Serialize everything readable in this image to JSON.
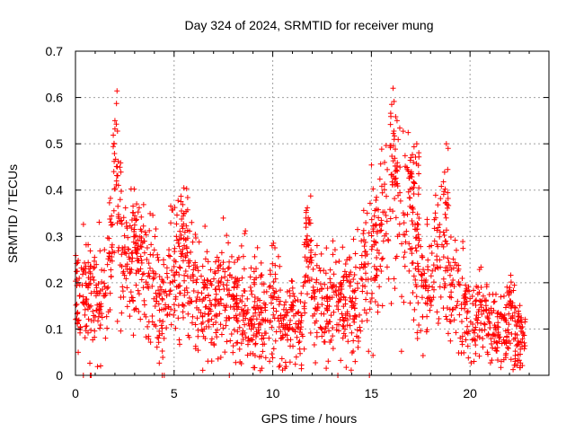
{
  "chart_data": {
    "type": "scatter",
    "title": "Day 324 of 2024, SRMTID for receiver mung",
    "xlabel": "GPS time / hours",
    "ylabel": "SRMTID / TECUs",
    "xlim": [
      0,
      24
    ],
    "ylim": [
      0,
      0.7
    ],
    "xticks": [
      0,
      5,
      10,
      15,
      20
    ],
    "yticks": [
      0,
      0.1,
      0.2,
      0.3,
      0.4,
      0.5,
      0.6,
      0.7
    ],
    "xtick_labels": [
      "0",
      "5",
      "10",
      "15",
      "20"
    ],
    "ytick_labels": [
      "0",
      "0.1",
      "0.2",
      "0.3",
      "0.4",
      "0.5",
      "0.6",
      "0.7"
    ],
    "grid": true,
    "marker": "+",
    "color": "#ff0000",
    "envelope": [
      {
        "x": 0.0,
        "y": 0.17
      },
      {
        "x": 0.5,
        "y": 0.16
      },
      {
        "x": 0.9,
        "y": 0.18
      },
      {
        "x": 1.3,
        "y": 0.17
      },
      {
        "x": 1.7,
        "y": 0.21
      },
      {
        "x": 2.0,
        "y": 0.4
      },
      {
        "x": 2.2,
        "y": 0.34
      },
      {
        "x": 2.5,
        "y": 0.22
      },
      {
        "x": 3.0,
        "y": 0.26
      },
      {
        "x": 3.5,
        "y": 0.23
      },
      {
        "x": 4.0,
        "y": 0.17
      },
      {
        "x": 4.5,
        "y": 0.15
      },
      {
        "x": 4.8,
        "y": 0.2
      },
      {
        "x": 5.2,
        "y": 0.26
      },
      {
        "x": 5.6,
        "y": 0.25
      },
      {
        "x": 6.0,
        "y": 0.18
      },
      {
        "x": 6.5,
        "y": 0.16
      },
      {
        "x": 7.0,
        "y": 0.15
      },
      {
        "x": 7.5,
        "y": 0.18
      },
      {
        "x": 8.0,
        "y": 0.14
      },
      {
        "x": 8.5,
        "y": 0.17
      },
      {
        "x": 9.0,
        "y": 0.14
      },
      {
        "x": 9.5,
        "y": 0.13
      },
      {
        "x": 10.0,
        "y": 0.16
      },
      {
        "x": 10.5,
        "y": 0.11
      },
      {
        "x": 11.0,
        "y": 0.12
      },
      {
        "x": 11.5,
        "y": 0.1
      },
      {
        "x": 11.8,
        "y": 0.25
      },
      {
        "x": 12.2,
        "y": 0.17
      },
      {
        "x": 12.6,
        "y": 0.14
      },
      {
        "x": 13.0,
        "y": 0.15
      },
      {
        "x": 13.5,
        "y": 0.17
      },
      {
        "x": 14.0,
        "y": 0.15
      },
      {
        "x": 14.5,
        "y": 0.18
      },
      {
        "x": 15.0,
        "y": 0.26
      },
      {
        "x": 15.5,
        "y": 0.3
      },
      {
        "x": 16.0,
        "y": 0.42
      },
      {
        "x": 16.3,
        "y": 0.38
      },
      {
        "x": 16.7,
        "y": 0.28
      },
      {
        "x": 17.0,
        "y": 0.36
      },
      {
        "x": 17.4,
        "y": 0.24
      },
      {
        "x": 17.8,
        "y": 0.2
      },
      {
        "x": 18.2,
        "y": 0.25
      },
      {
        "x": 18.6,
        "y": 0.3
      },
      {
        "x": 19.0,
        "y": 0.2
      },
      {
        "x": 19.5,
        "y": 0.15
      },
      {
        "x": 20.0,
        "y": 0.12
      },
      {
        "x": 20.5,
        "y": 0.13
      },
      {
        "x": 21.0,
        "y": 0.12
      },
      {
        "x": 21.4,
        "y": 0.08
      },
      {
        "x": 21.7,
        "y": 0.1
      },
      {
        "x": 22.0,
        "y": 0.13
      },
      {
        "x": 22.4,
        "y": 0.09
      },
      {
        "x": 22.8,
        "y": 0.08
      }
    ],
    "peaks": [
      {
        "x": 2.0,
        "y": 0.55
      },
      {
        "x": 16.1,
        "y": 0.62
      },
      {
        "x": 16.3,
        "y": 0.55
      },
      {
        "x": 17.0,
        "y": 0.47
      },
      {
        "x": 17.3,
        "y": 0.5
      },
      {
        "x": 18.8,
        "y": 0.5
      },
      {
        "x": 11.8,
        "y": 0.34
      },
      {
        "x": 5.5,
        "y": 0.35
      },
      {
        "x": 3.1,
        "y": 0.37
      }
    ],
    "zero_markers_x": [
      0.4,
      0.75,
      0.8,
      4.4,
      4.5,
      7.8,
      13.3,
      14.9
    ]
  }
}
